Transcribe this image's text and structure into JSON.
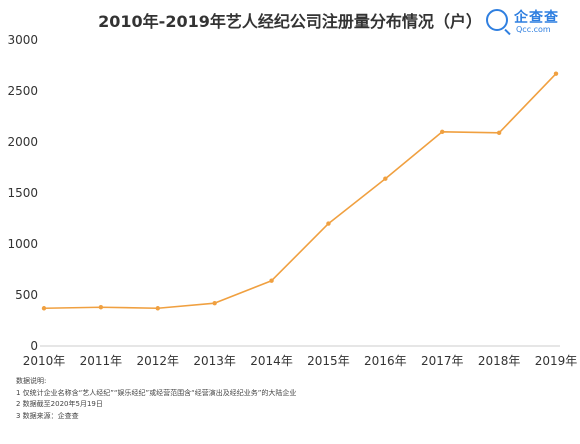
{
  "header": {
    "title": "2010年-2019年艺人经纪公司注册量分布情况（户）"
  },
  "logo": {
    "icon": "magnifier-icon",
    "name": "企查查",
    "sub": "Qcc.com"
  },
  "chart_data": {
    "type": "line",
    "categories": [
      "2010年",
      "2011年",
      "2012年",
      "2013年",
      "2014年",
      "2015年",
      "2016年",
      "2017年",
      "2018年",
      "2019年"
    ],
    "series": [
      {
        "values": [
          370,
          380,
          370,
          420,
          640,
          1200,
          1640,
          2100,
          2090,
          2670
        ]
      }
    ],
    "ylim": [
      0,
      3000
    ],
    "yticks": [
      0,
      500,
      1000,
      1500,
      2000,
      2500,
      3000
    ],
    "grid": false,
    "color": "#f0a040"
  },
  "notes": {
    "heading": "数据说明:",
    "lines": [
      "1 仅统计企业名称含“艺人经纪”“娱乐经纪”或经营范围含“经营演出及经纪业务”的大陆企业",
      "2 数据截至2020年5月19日",
      "3 数据来源：企查查"
    ]
  }
}
